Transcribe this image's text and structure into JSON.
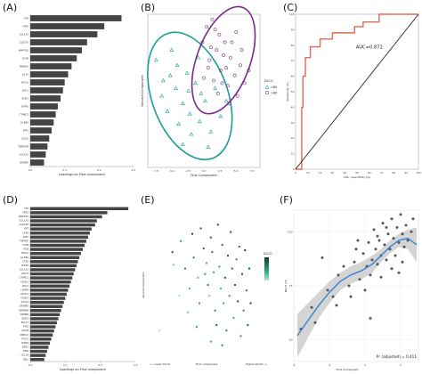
{
  "chart_data": [
    {
      "panel": "(A)",
      "type": "bar",
      "orientation": "horizontal",
      "xlabel": "Loadings on First component",
      "xlim": [
        0,
        0.3
      ],
      "x_ticks": [
        "0.0",
        "0.1",
        "0.2",
        "0.3"
      ],
      "categories": [
        "FF6",
        "FBP1",
        "COL1A2",
        "CLEC7A",
        "MMP7B1",
        "VCAN",
        "TNNAB1",
        "IL17A",
        "ACSL3",
        "SDC1",
        "BGN1",
        "SFRP1",
        "CTHRC1",
        "LILRB4",
        "SPP1",
        "CXCL5",
        "TNFRSF9",
        "COL5A1",
        "CRABP2"
      ],
      "values": [
        0.265,
        0.215,
        0.195,
        0.165,
        0.15,
        0.135,
        0.12,
        0.11,
        0.1,
        0.095,
        0.088,
        0.08,
        0.074,
        0.068,
        0.062,
        0.055,
        0.05,
        0.045,
        0.04
      ],
      "color": "#444444"
    },
    {
      "panel": "(B)",
      "type": "scatter",
      "xlabel": "First Component",
      "ylabel": "Second Component",
      "xlim": [
        -4,
        4
      ],
      "ylim": [
        -3,
        3
      ],
      "x_ticks": [
        "-7.5",
        "-5.0",
        "-2.5",
        "0.0",
        "2.5",
        "5.0",
        "7.5"
      ],
      "legend_title": "DLCO",
      "legend_position": "right",
      "groups": [
        {
          "name": "<80",
          "marker": "triangle",
          "color": "#1a9e96",
          "points": [
            [
              -3.4,
              1.2
            ],
            [
              -2.9,
              0.4
            ],
            [
              -3.0,
              -0.2
            ],
            [
              -2.4,
              0.6
            ],
            [
              -2.6,
              -0.8
            ],
            [
              -1.9,
              1.0
            ],
            [
              -2.0,
              0.1
            ],
            [
              -1.5,
              -0.5
            ],
            [
              -1.2,
              0.7
            ],
            [
              -1.8,
              -1.3
            ],
            [
              -1.0,
              -0.9
            ],
            [
              -0.6,
              0.3
            ],
            [
              -0.9,
              -1.7
            ],
            [
              -0.3,
              -1.2
            ],
            [
              0.1,
              -0.4
            ],
            [
              -1.5,
              -2.1
            ],
            [
              0.5,
              -1.6
            ],
            [
              0.8,
              0.1
            ],
            [
              -0.4,
              1.3
            ],
            [
              -2.3,
              1.6
            ],
            [
              0.3,
              -2.2
            ],
            [
              1.2,
              -1.0
            ],
            [
              -1.1,
              0.0
            ],
            [
              -0.2,
              -0.1
            ],
            [
              1.6,
              -0.4
            ]
          ]
        },
        {
          "name": ">80",
          "marker": "circle",
          "color": "#7a2a8a",
          "points": [
            [
              0.2,
              2.5
            ],
            [
              0.6,
              2.8
            ],
            [
              1.1,
              2.2
            ],
            [
              -0.1,
              1.9
            ],
            [
              0.9,
              1.6
            ],
            [
              1.5,
              1.9
            ],
            [
              0.4,
              1.2
            ],
            [
              1.9,
              1.3
            ],
            [
              1.2,
              0.8
            ],
            [
              2.2,
              0.6
            ],
            [
              0.7,
              0.4
            ],
            [
              1.7,
              0.2
            ],
            [
              2.6,
              1.0
            ],
            [
              2.4,
              -0.2
            ],
            [
              1.0,
              -0.1
            ],
            [
              0.3,
              0.9
            ],
            [
              2.0,
              1.9
            ],
            [
              1.4,
              1.4
            ],
            [
              2.9,
              0.3
            ],
            [
              0.0,
              0.5
            ],
            [
              1.8,
              -0.5
            ],
            [
              2.3,
              2.3
            ],
            [
              0.8,
              2.4
            ],
            [
              1.3,
              0.3
            ],
            [
              3.2,
              0.8
            ],
            [
              0.5,
              1.7
            ],
            [
              2.7,
              1.6
            ],
            [
              1.6,
              0.9
            ]
          ]
        }
      ],
      "ellipses": [
        {
          "group": "<80",
          "cx": -1.0,
          "cy": -0.2,
          "rx": 2.7,
          "ry": 2.6,
          "rotation_deg": -20,
          "color": "#1a9e96"
        },
        {
          "group": ">80",
          "cx": 1.4,
          "cy": 1.2,
          "rx": 1.9,
          "ry": 2.2,
          "rotation_deg": 20,
          "color": "#7a2a8a"
        }
      ]
    },
    {
      "panel": "(C)",
      "type": "line",
      "xlabel": "100 - Specificity (%)",
      "ylabel": "Sensitivity (%)",
      "xlim": [
        0,
        100
      ],
      "ylim": [
        0,
        100
      ],
      "x_ticks": [
        "0",
        "10",
        "20",
        "30",
        "40",
        "50",
        "60",
        "70",
        "80",
        "90",
        "100"
      ],
      "y_ticks": [
        "0",
        "10",
        "20",
        "30",
        "40",
        "50",
        "60",
        "70",
        "80",
        "90",
        "100"
      ],
      "annotation": "AUC=0.872",
      "series": [
        {
          "x": [
            0,
            5,
            5,
            6,
            6,
            8,
            8,
            12,
            12,
            20,
            20,
            30,
            30,
            48,
            48,
            55,
            55,
            68,
            68,
            100
          ],
          "y": [
            0,
            0,
            40,
            40,
            60,
            60,
            72,
            72,
            79,
            79,
            84,
            84,
            88,
            88,
            92,
            92,
            95,
            95,
            100,
            100
          ],
          "color": "#e06a55"
        },
        {
          "x": [
            0,
            100
          ],
          "y": [
            0,
            100
          ],
          "color": "#222222"
        }
      ]
    },
    {
      "panel": "(D)",
      "type": "bar",
      "orientation": "horizontal",
      "xlabel": "Loadings on First component",
      "xlim": [
        0,
        0.3
      ],
      "x_ticks": [
        "0.0",
        "0.1",
        "0.2",
        "0.3"
      ],
      "categories": [
        "FF6",
        "FBP1",
        "MMP7B1",
        "COL1A2",
        "CCDC80",
        "KRT",
        "CD36",
        "SPP1",
        "TNFRSF",
        "TGFB",
        "ITGB",
        "FOSL1",
        "LILRB4",
        "CTSK",
        "SFRP4",
        "COL5A1",
        "CXCL5",
        "CTHRC1",
        "CDH11",
        "SDC1",
        "LAMP3",
        "APOC1",
        "CXCR1",
        "ACSL3",
        "CRABP2",
        "SERPINE",
        "GPNMB",
        "BGN1",
        "EGFL7",
        "IFNG",
        "ADAM",
        "MMP12",
        "ITGA1",
        "FABP4",
        "ESM1",
        "TNNI",
        "CCL18",
        "SELL"
      ],
      "values": [
        0.28,
        0.22,
        0.205,
        0.19,
        0.185,
        0.175,
        0.17,
        0.165,
        0.16,
        0.155,
        0.15,
        0.145,
        0.14,
        0.136,
        0.132,
        0.128,
        0.124,
        0.12,
        0.116,
        0.112,
        0.108,
        0.104,
        0.1,
        0.096,
        0.092,
        0.088,
        0.084,
        0.08,
        0.076,
        0.072,
        0.068,
        0.064,
        0.06,
        0.056,
        0.052,
        0.048,
        0.044,
        0.04
      ],
      "color": "#444444"
    },
    {
      "panel": "(E)",
      "type": "scatter",
      "xlabel": "First component",
      "ylabel": "Second component",
      "xlim": [
        -4,
        4
      ],
      "ylim": [
        -4,
        4
      ],
      "x_caption_left": "<- Lower DLCO",
      "x_caption_right": "Higher DLCO ->",
      "legend_title": "DLCO",
      "legend_position": "right",
      "color_scale": [
        "#0d3b2a",
        "#1f7a5a",
        "#39b890",
        "#aee9da"
      ],
      "points": [
        [
          -2.4,
          1.8,
          0.2
        ],
        [
          -2.3,
          1.1,
          0.8
        ],
        [
          -1.8,
          2.4,
          0.5
        ],
        [
          -1.5,
          0.9,
          0.3
        ],
        [
          -1.9,
          -0.6,
          0.9
        ],
        [
          -1.2,
          -0.2,
          0.6
        ],
        [
          -1.0,
          2.8,
          0.1
        ],
        [
          -0.9,
          1.5,
          0.4
        ],
        [
          -0.6,
          0.4,
          0.7
        ],
        [
          -0.5,
          -1.0,
          0.5
        ],
        [
          -0.4,
          3.1,
          0.2
        ],
        [
          -0.2,
          2.0,
          0.3
        ],
        [
          0.0,
          1.2,
          0.6
        ],
        [
          0.1,
          0.0,
          0.4
        ],
        [
          0.2,
          -0.6,
          0.8
        ],
        [
          0.3,
          2.6,
          0.2
        ],
        [
          0.4,
          1.8,
          0.3
        ],
        [
          0.5,
          0.7,
          0.6
        ],
        [
          0.6,
          -1.4,
          0.4
        ],
        [
          0.7,
          -2.2,
          0.2
        ],
        [
          0.8,
          3.3,
          0.1
        ],
        [
          0.9,
          1.0,
          0.5
        ],
        [
          1.0,
          -0.2,
          0.7
        ],
        [
          1.1,
          2.2,
          0.3
        ],
        [
          1.2,
          -1.0,
          0.6
        ],
        [
          1.3,
          0.4,
          0.2
        ],
        [
          1.4,
          -2.5,
          0.4
        ],
        [
          1.5,
          1.6,
          0.1
        ],
        [
          1.6,
          -0.6,
          0.5
        ],
        [
          1.7,
          2.9,
          0.2
        ],
        [
          1.8,
          0.9,
          0.3
        ],
        [
          1.9,
          -1.8,
          0.6
        ],
        [
          2.0,
          0.0,
          0.2
        ],
        [
          2.1,
          1.4,
          0.4
        ],
        [
          2.2,
          -0.9,
          0.1
        ],
        [
          2.3,
          2.1,
          0.3
        ],
        [
          2.4,
          -2.8,
          0.5
        ],
        [
          2.5,
          0.6,
          0.2
        ],
        [
          2.6,
          -1.4,
          0.4
        ],
        [
          2.7,
          1.9,
          0.1
        ],
        [
          2.8,
          -0.3,
          0.3
        ],
        [
          2.9,
          -2.2,
          0.2
        ],
        [
          3.0,
          0.9,
          0.2
        ],
        [
          3.1,
          -1.0,
          0.1
        ],
        [
          0.3,
          -3.1,
          0.6
        ],
        [
          -0.7,
          -2.3,
          0.5
        ],
        [
          -1.3,
          -1.5,
          0.8
        ],
        [
          1.1,
          -3.3,
          0.4
        ],
        [
          -3.3,
          -2.5,
          1.0
        ],
        [
          -0.1,
          0.6,
          0.5
        ]
      ]
    },
    {
      "panel": "(F)",
      "type": "scatter",
      "xlabel": "First Component",
      "ylabel": "DLCO (%)",
      "xlim": [
        -4,
        3
      ],
      "ylim": [
        40,
        110
      ],
      "x_ticks": [
        "-4",
        "-2",
        "0",
        "2"
      ],
      "y_ticks": [
        "50",
        "75",
        "100"
      ],
      "annotation": "R² (adjusted) = 0.411",
      "point_color": "#555555",
      "smooth_color": "#2a7fd4",
      "band_color": "#cccccc",
      "smooth": [
        [
          -3.8,
          52
        ],
        [
          -3.2,
          59
        ],
        [
          -2.6,
          66
        ],
        [
          -2.0,
          72
        ],
        [
          -1.4,
          77
        ],
        [
          -0.8,
          80
        ],
        [
          -0.2,
          82
        ],
        [
          0.4,
          85
        ],
        [
          0.9,
          89
        ],
        [
          1.4,
          93
        ],
        [
          1.9,
          96
        ],
        [
          2.4,
          97
        ],
        [
          2.9,
          94
        ]
      ],
      "band_upper": [
        [
          -3.8,
          62
        ],
        [
          -3.2,
          67
        ],
        [
          -2.6,
          72
        ],
        [
          -2.0,
          77
        ],
        [
          -1.4,
          81
        ],
        [
          -0.8,
          84
        ],
        [
          -0.2,
          86
        ],
        [
          0.4,
          89
        ],
        [
          0.9,
          92
        ],
        [
          1.4,
          96
        ],
        [
          1.9,
          99
        ],
        [
          2.4,
          101
        ],
        [
          2.9,
          102
        ]
      ],
      "band_lower": [
        [
          -3.8,
          42
        ],
        [
          -3.2,
          51
        ],
        [
          -2.6,
          60
        ],
        [
          -2.0,
          67
        ],
        [
          -1.4,
          73
        ],
        [
          -0.8,
          76
        ],
        [
          -0.2,
          78
        ],
        [
          0.4,
          81
        ],
        [
          0.9,
          86
        ],
        [
          1.4,
          90
        ],
        [
          1.9,
          93
        ],
        [
          2.4,
          92
        ],
        [
          2.9,
          86
        ]
      ],
      "points": [
        [
          -3.6,
          55
        ],
        [
          -3.0,
          65
        ],
        [
          -2.4,
          88
        ],
        [
          -2.1,
          73
        ],
        [
          -1.8,
          70
        ],
        [
          -1.5,
          80
        ],
        [
          -1.2,
          84
        ],
        [
          -0.9,
          75
        ],
        [
          -0.6,
          86
        ],
        [
          -0.5,
          92
        ],
        [
          -0.3,
          78
        ],
        [
          -0.1,
          90
        ],
        [
          0.1,
          84
        ],
        [
          0.2,
          95
        ],
        [
          0.3,
          80
        ],
        [
          0.4,
          87
        ],
        [
          0.5,
          101
        ],
        [
          0.6,
          92
        ],
        [
          0.7,
          85
        ],
        [
          0.8,
          96
        ],
        [
          0.9,
          89
        ],
        [
          1.0,
          104
        ],
        [
          1.1,
          94
        ],
        [
          1.2,
          87
        ],
        [
          1.3,
          99
        ],
        [
          1.4,
          92
        ],
        [
          1.5,
          106
        ],
        [
          1.6,
          97
        ],
        [
          1.7,
          89
        ],
        [
          1.8,
          102
        ],
        [
          1.9,
          95
        ],
        [
          2.0,
          108
        ],
        [
          2.1,
          99
        ],
        [
          2.2,
          93
        ],
        [
          2.3,
          103
        ],
        [
          2.4,
          96
        ],
        [
          2.6,
          100
        ],
        [
          2.7,
          106
        ],
        [
          -1.6,
          66
        ],
        [
          -0.8,
          70
        ],
        [
          0.0,
          73
        ],
        [
          0.9,
          79
        ],
        [
          1.5,
          83
        ],
        [
          2.1,
          86
        ],
        [
          -2.8,
          58
        ],
        [
          0.3,
          60
        ],
        [
          1.2,
          102
        ],
        [
          1.9,
          81
        ],
        [
          0.7,
          98
        ],
        [
          -0.4,
          96
        ]
      ]
    }
  ]
}
